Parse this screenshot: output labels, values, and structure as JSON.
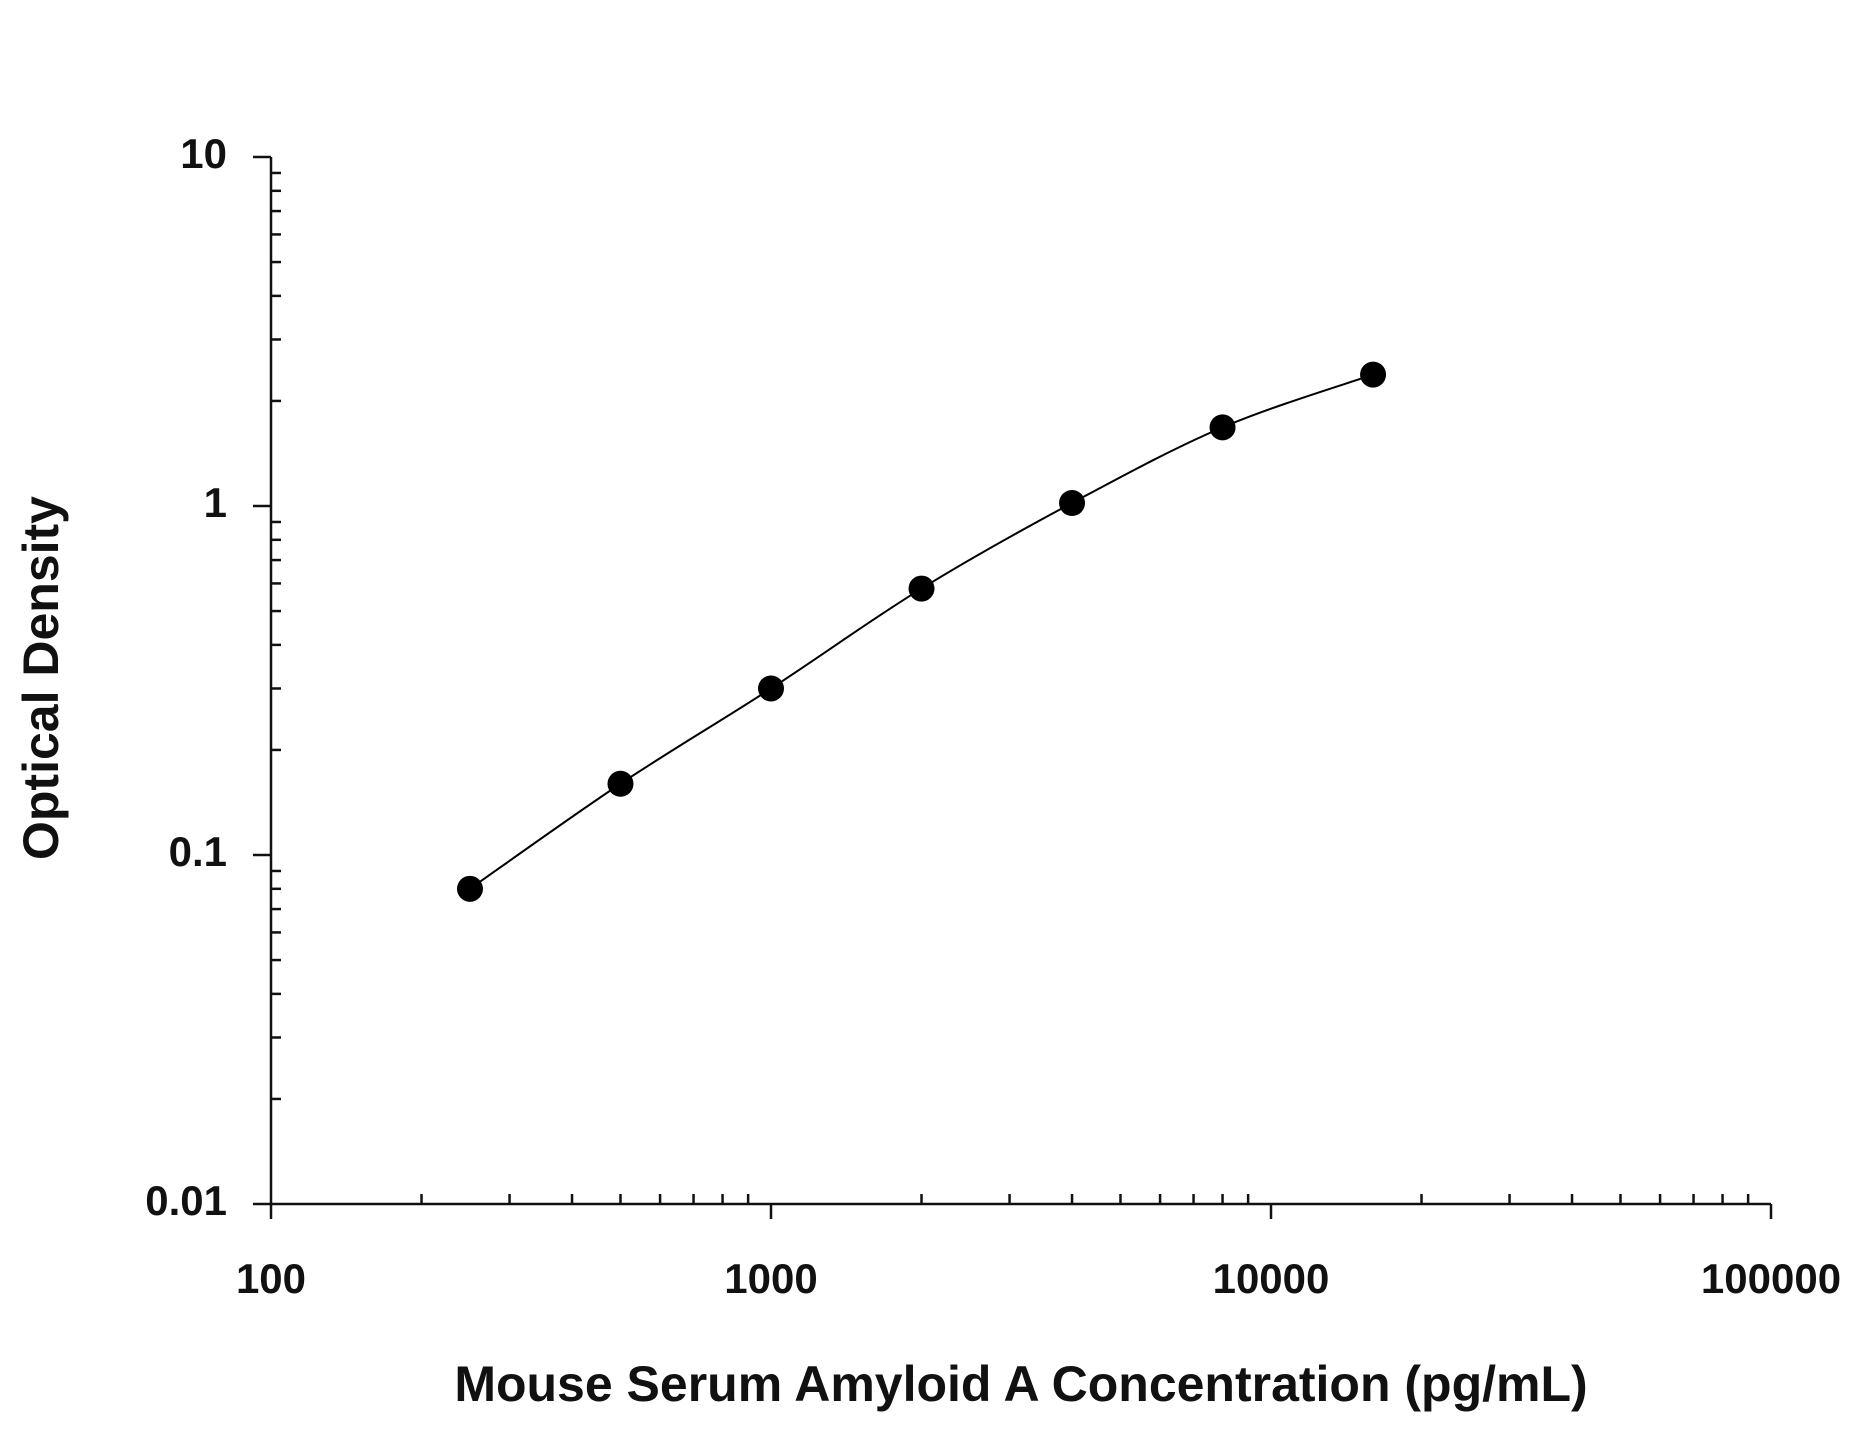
{
  "chart_data": {
    "type": "line",
    "x_label": "Mouse Serum Amyloid A Concentration (pg/mL)",
    "y_label": "Optical Density",
    "x": [
      250,
      500,
      1000,
      2000,
      4000,
      8000,
      16000
    ],
    "series": [
      {
        "color": "#000000",
        "values": [
          0.08,
          0.16,
          0.3,
          0.58,
          1.02,
          1.68,
          2.38
        ]
      }
    ],
    "xlim": [
      100,
      100000
    ],
    "xticks": [
      100,
      1000,
      10000,
      100000
    ],
    "xscale": "log",
    "ylim": [
      0.01,
      10
    ],
    "yticks": [
      0.01,
      0.1,
      1,
      10
    ],
    "yscale": "log",
    "markers": true,
    "grid": false
  }
}
